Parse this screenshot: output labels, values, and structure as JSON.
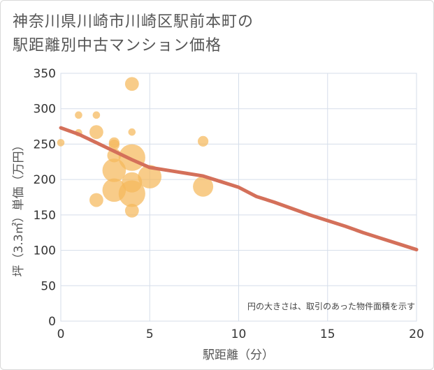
{
  "title": {
    "line1": "神奈川県川崎市川崎区駅前本町の",
    "line2": "駅距離別中古マンション価格"
  },
  "chart_data": {
    "type": "scatter",
    "xlabel": "駅距離（分）",
    "ylabel": "坪（3.3㎡）単価（万円）",
    "xlim": [
      0,
      20
    ],
    "ylim": [
      0,
      350
    ],
    "xticks": [
      0,
      5,
      10,
      15,
      20
    ],
    "yticks": [
      0,
      50,
      100,
      150,
      200,
      250,
      300,
      350
    ],
    "grid": true,
    "annotation": "円の大きさは、取引のあった物件面積を示す",
    "colors": {
      "bubble": "#f5b95c",
      "trend": "#d4705a",
      "grid": "#d5deea",
      "axis_text": "#333333"
    },
    "bubbles": [
      {
        "x": 0,
        "y": 252,
        "size": 1
      },
      {
        "x": 1,
        "y": 291,
        "size": 1
      },
      {
        "x": 1,
        "y": 266,
        "size": 1
      },
      {
        "x": 2,
        "y": 291,
        "size": 1
      },
      {
        "x": 2,
        "y": 267,
        "size": 3
      },
      {
        "x": 2,
        "y": 171,
        "size": 3
      },
      {
        "x": 3,
        "y": 252,
        "size": 2
      },
      {
        "x": 3,
        "y": 249,
        "size": 2
      },
      {
        "x": 3,
        "y": 234,
        "size": 3
      },
      {
        "x": 3,
        "y": 213,
        "size": 6
      },
      {
        "x": 3,
        "y": 185,
        "size": 6
      },
      {
        "x": 4,
        "y": 335,
        "size": 3
      },
      {
        "x": 4,
        "y": 267,
        "size": 1
      },
      {
        "x": 4,
        "y": 231,
        "size": 7
      },
      {
        "x": 4,
        "y": 196,
        "size": 5
      },
      {
        "x": 4,
        "y": 180,
        "size": 7
      },
      {
        "x": 4,
        "y": 156,
        "size": 3
      },
      {
        "x": 5,
        "y": 204,
        "size": 6
      },
      {
        "x": 8,
        "y": 254,
        "size": 2
      },
      {
        "x": 8,
        "y": 190,
        "size": 5
      }
    ],
    "trend_line": {
      "x": [
        0,
        1,
        2,
        3,
        4,
        5,
        6,
        7,
        8,
        9,
        10,
        11,
        12,
        13,
        14,
        15,
        16,
        17,
        18,
        19,
        20
      ],
      "y": [
        273,
        264,
        252,
        240,
        228,
        217,
        213,
        209,
        205,
        197,
        189,
        176,
        168,
        159,
        150,
        142,
        134,
        125,
        117,
        109,
        101
      ]
    }
  }
}
